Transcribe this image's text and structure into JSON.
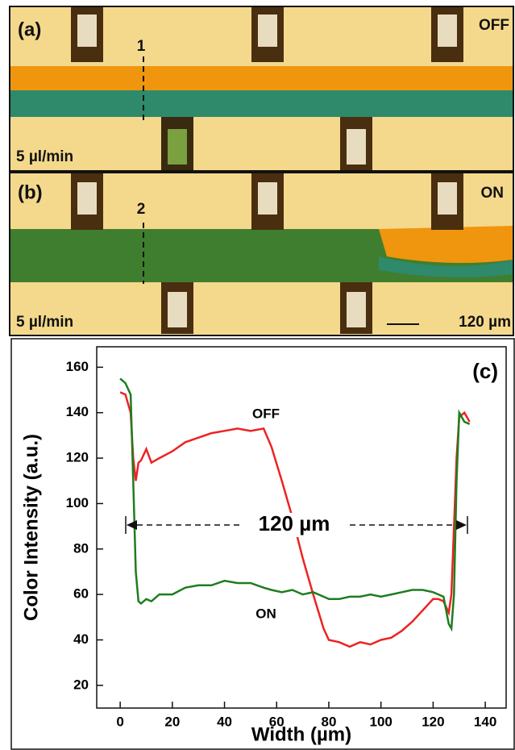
{
  "panels": [
    {
      "label": "(a)",
      "marker": "1",
      "state": "OFF",
      "flow": "5 µl/min"
    },
    {
      "label": "(b)",
      "marker": "2",
      "state": "ON",
      "flow": "5 µl/min",
      "scale_bar": "120 µm"
    }
  ],
  "chart_data": {
    "type": "line",
    "panel_label": "(c)",
    "x_label": "Width (µm)",
    "y_label": "Color Intensity (a.u.)",
    "x": [
      0,
      2,
      4,
      5,
      6,
      7,
      8,
      10,
      12,
      15,
      20,
      25,
      30,
      35,
      40,
      45,
      50,
      55,
      58,
      62,
      66,
      70,
      74,
      78,
      80,
      84,
      88,
      92,
      96,
      100,
      104,
      108,
      112,
      116,
      120,
      122,
      124,
      126,
      127,
      128,
      129,
      130,
      132,
      134
    ],
    "series": [
      {
        "name": "OFF",
        "color": "#ee2222",
        "values": [
          149,
          148,
          140,
          120,
          110,
          118,
          119,
          124,
          118,
          120,
          123,
          127,
          129,
          131,
          132,
          133,
          132,
          133,
          125,
          110,
          94,
          76,
          60,
          45,
          40,
          39,
          37,
          39,
          38,
          40,
          41,
          44,
          48,
          53,
          58,
          58,
          57,
          52,
          60,
          90,
          120,
          138,
          140,
          136
        ]
      },
      {
        "name": "ON",
        "color": "#1e7d1e",
        "values": [
          155,
          153,
          148,
          110,
          70,
          57,
          56,
          58,
          57,
          60,
          60,
          63,
          64,
          64,
          66,
          65,
          65,
          63,
          62,
          61,
          62,
          60,
          61,
          59,
          58,
          58,
          59,
          59,
          60,
          59,
          60,
          61,
          62,
          62,
          61,
          60,
          59,
          47,
          45,
          60,
          110,
          140,
          136,
          135
        ]
      }
    ],
    "annotations": [
      "120 µm"
    ],
    "xlim": [
      -9,
      148
    ],
    "ylim": [
      10,
      169
    ],
    "xticks": [
      0,
      20,
      40,
      60,
      80,
      100,
      120,
      140
    ],
    "yticks": [
      20,
      40,
      60,
      80,
      100,
      120,
      140,
      160
    ]
  }
}
